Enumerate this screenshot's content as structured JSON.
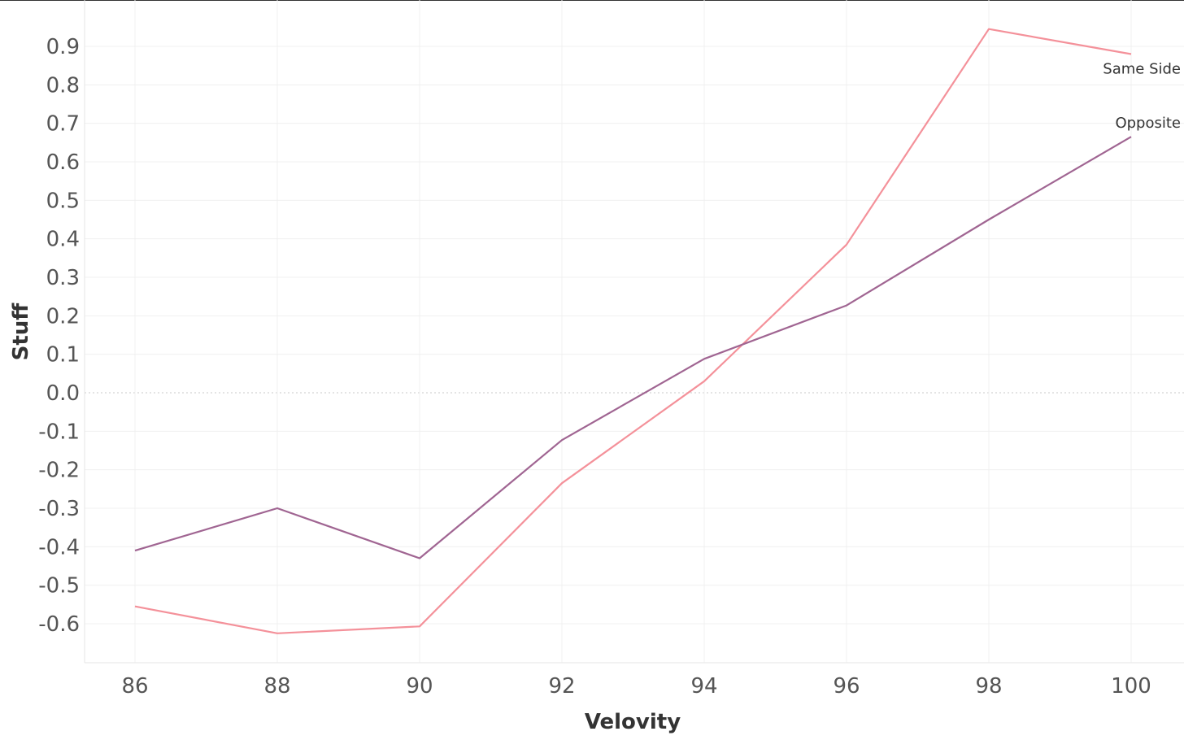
{
  "chart_data": {
    "type": "line",
    "title": "",
    "xlabel": "Velovity",
    "ylabel": "Stuff",
    "x": [
      86,
      88,
      90,
      92,
      94,
      96,
      98,
      100
    ],
    "xticks": [
      "86",
      "88",
      "90",
      "92",
      "94",
      "96",
      "98",
      "100"
    ],
    "yticks": [
      "-0.6",
      "-0.5",
      "-0.4",
      "-0.3",
      "-0.2",
      "-0.1",
      "0.0",
      "0.1",
      "0.2",
      "0.3",
      "0.4",
      "0.5",
      "0.6",
      "0.7",
      "0.8",
      "0.9"
    ],
    "xlim": [
      84.6,
      101.5
    ],
    "ylim": [
      -0.7,
      0.95
    ],
    "grid": true,
    "zero_line": true,
    "legend": "none (labels at line ends)",
    "series": [
      {
        "name": "Same Side",
        "color": "#f4919a",
        "values": [
          -0.555,
          -0.625,
          -0.607,
          -0.235,
          0.03,
          0.385,
          0.945,
          0.88
        ]
      },
      {
        "name": "Opposite",
        "color": "#a06592",
        "values": [
          -0.41,
          -0.3,
          -0.43,
          -0.123,
          0.088,
          0.227,
          0.45,
          0.665
        ]
      }
    ]
  }
}
